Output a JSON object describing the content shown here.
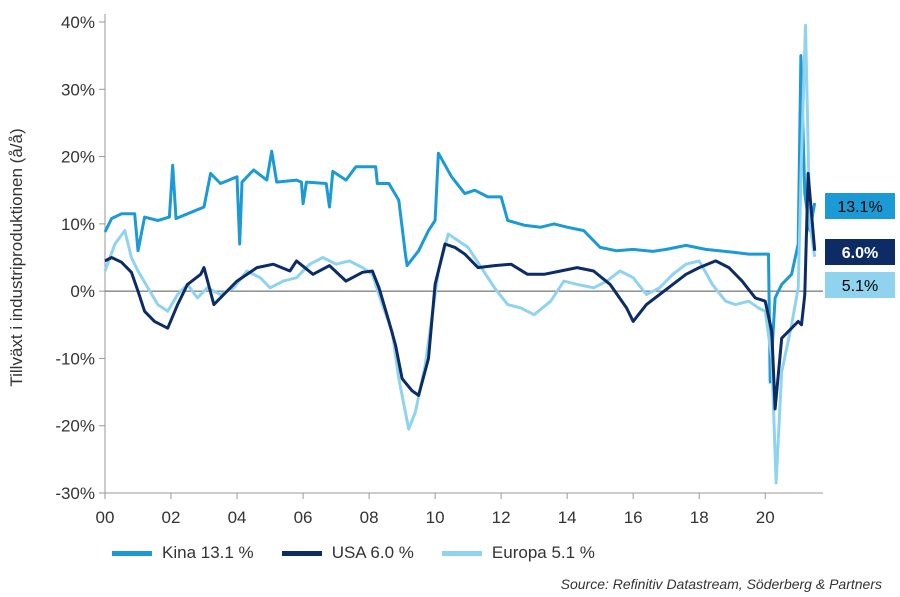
{
  "chart_data": {
    "type": "line",
    "title": "",
    "ylabel": "Tillväxt i industriproduktionen (å/å)",
    "xlabel": "",
    "ylim": [
      -30,
      40
    ],
    "xlim": [
      2000,
      2021.75
    ],
    "yticks": [
      -30,
      -20,
      -10,
      0,
      10,
      20,
      30,
      40
    ],
    "ytick_labels": [
      "-30%",
      "-20%",
      "-10%",
      "0%",
      "10%",
      "20%",
      "30%",
      "40%"
    ],
    "xticks": [
      2000,
      2002,
      2004,
      2006,
      2008,
      2010,
      2012,
      2014,
      2016,
      2018,
      2020
    ],
    "xtick_labels": [
      "00",
      "02",
      "04",
      "06",
      "08",
      "10",
      "12",
      "14",
      "16",
      "18",
      "20"
    ],
    "grid": false,
    "legend_position": "bottom",
    "series": [
      {
        "name": "Kina 13.1 %",
        "color": "#1b9ad6",
        "end_label": "13.1%",
        "points": [
          [
            2000.0,
            8.8
          ],
          [
            2000.2,
            10.8
          ],
          [
            2000.5,
            11.5
          ],
          [
            2000.9,
            11.5
          ],
          [
            2001.0,
            6.0
          ],
          [
            2001.2,
            11.0
          ],
          [
            2001.6,
            10.5
          ],
          [
            2001.95,
            11.0
          ],
          [
            2002.05,
            18.7
          ],
          [
            2002.15,
            10.8
          ],
          [
            2002.5,
            11.5
          ],
          [
            2003.0,
            12.5
          ],
          [
            2003.2,
            17.5
          ],
          [
            2003.5,
            16.0
          ],
          [
            2004.0,
            17.0
          ],
          [
            2004.08,
            7.0
          ],
          [
            2004.15,
            16.2
          ],
          [
            2004.5,
            18.0
          ],
          [
            2004.9,
            16.5
          ],
          [
            2005.05,
            20.8
          ],
          [
            2005.2,
            16.2
          ],
          [
            2005.8,
            16.5
          ],
          [
            2005.95,
            16.2
          ],
          [
            2006.0,
            13.0
          ],
          [
            2006.1,
            16.2
          ],
          [
            2006.7,
            16.0
          ],
          [
            2006.8,
            12.5
          ],
          [
            2006.9,
            17.8
          ],
          [
            2007.3,
            16.5
          ],
          [
            2007.6,
            18.5
          ],
          [
            2008.2,
            18.5
          ],
          [
            2008.25,
            16.0
          ],
          [
            2008.6,
            16.0
          ],
          [
            2008.9,
            13.5
          ],
          [
            2009.1,
            5.5
          ],
          [
            2009.15,
            3.8
          ],
          [
            2009.5,
            6.0
          ],
          [
            2009.8,
            9.0
          ],
          [
            2010.0,
            10.5
          ],
          [
            2010.1,
            20.5
          ],
          [
            2010.5,
            17.0
          ],
          [
            2010.9,
            14.5
          ],
          [
            2011.2,
            15.0
          ],
          [
            2011.6,
            14.0
          ],
          [
            2012.0,
            14.0
          ],
          [
            2012.2,
            10.5
          ],
          [
            2012.7,
            9.8
          ],
          [
            2013.2,
            9.5
          ],
          [
            2013.6,
            10.0
          ],
          [
            2014.0,
            9.5
          ],
          [
            2014.5,
            9.0
          ],
          [
            2015.0,
            6.5
          ],
          [
            2015.5,
            6.0
          ],
          [
            2016.0,
            6.2
          ],
          [
            2016.6,
            5.9
          ],
          [
            2017.0,
            6.2
          ],
          [
            2017.6,
            6.8
          ],
          [
            2018.2,
            6.2
          ],
          [
            2018.6,
            6.0
          ],
          [
            2019.0,
            5.8
          ],
          [
            2019.5,
            5.5
          ],
          [
            2020.1,
            5.5
          ],
          [
            2020.15,
            -13.5
          ],
          [
            2020.3,
            -1.0
          ],
          [
            2020.5,
            1.0
          ],
          [
            2020.8,
            2.5
          ],
          [
            2021.0,
            7.0
          ],
          [
            2021.08,
            35.0
          ],
          [
            2021.2,
            14.5
          ],
          [
            2021.35,
            9.0
          ],
          [
            2021.5,
            13.1
          ]
        ]
      },
      {
        "name": "USA 6.0 %",
        "color": "#0d2c66",
        "end_label": "6.0%",
        "points": [
          [
            2000.0,
            4.5
          ],
          [
            2000.2,
            5.0
          ],
          [
            2000.5,
            4.3
          ],
          [
            2000.8,
            2.8
          ],
          [
            2001.0,
            0.0
          ],
          [
            2001.2,
            -3.0
          ],
          [
            2001.5,
            -4.5
          ],
          [
            2001.9,
            -5.5
          ],
          [
            2002.2,
            -2.0
          ],
          [
            2002.5,
            1.0
          ],
          [
            2002.9,
            2.5
          ],
          [
            2003.0,
            3.5
          ],
          [
            2003.3,
            -2.0
          ],
          [
            2003.6,
            -0.5
          ],
          [
            2004.0,
            1.5
          ],
          [
            2004.6,
            3.5
          ],
          [
            2005.1,
            4.0
          ],
          [
            2005.6,
            3.0
          ],
          [
            2005.8,
            4.5
          ],
          [
            2006.3,
            2.5
          ],
          [
            2006.8,
            3.8
          ],
          [
            2007.3,
            1.5
          ],
          [
            2007.8,
            2.8
          ],
          [
            2008.1,
            3.0
          ],
          [
            2008.3,
            0.5
          ],
          [
            2008.6,
            -4.5
          ],
          [
            2008.8,
            -8.0
          ],
          [
            2009.0,
            -13.0
          ],
          [
            2009.3,
            -14.8
          ],
          [
            2009.5,
            -15.5
          ],
          [
            2009.8,
            -10.0
          ],
          [
            2010.0,
            1.0
          ],
          [
            2010.3,
            7.0
          ],
          [
            2010.6,
            6.5
          ],
          [
            2010.9,
            5.5
          ],
          [
            2011.3,
            3.5
          ],
          [
            2011.8,
            3.8
          ],
          [
            2012.3,
            4.0
          ],
          [
            2012.8,
            2.5
          ],
          [
            2013.3,
            2.5
          ],
          [
            2013.8,
            3.0
          ],
          [
            2014.3,
            3.5
          ],
          [
            2014.8,
            3.0
          ],
          [
            2015.3,
            1.0
          ],
          [
            2015.8,
            -2.5
          ],
          [
            2016.0,
            -4.5
          ],
          [
            2016.4,
            -2.0
          ],
          [
            2016.8,
            -0.5
          ],
          [
            2017.2,
            1.0
          ],
          [
            2017.6,
            2.5
          ],
          [
            2018.0,
            3.5
          ],
          [
            2018.5,
            4.5
          ],
          [
            2018.9,
            3.5
          ],
          [
            2019.3,
            1.5
          ],
          [
            2019.7,
            -1.0
          ],
          [
            2020.0,
            -1.5
          ],
          [
            2020.2,
            -6.0
          ],
          [
            2020.3,
            -17.5
          ],
          [
            2020.5,
            -7.0
          ],
          [
            2020.8,
            -5.5
          ],
          [
            2021.0,
            -4.5
          ],
          [
            2021.1,
            -5.0
          ],
          [
            2021.2,
            -0.5
          ],
          [
            2021.3,
            17.5
          ],
          [
            2021.5,
            6.0
          ]
        ]
      },
      {
        "name": "Europa 5.1 %",
        "color": "#8fd3ee",
        "end_label": "5.1%",
        "points": [
          [
            2000.0,
            3.0
          ],
          [
            2000.3,
            7.0
          ],
          [
            2000.6,
            9.0
          ],
          [
            2000.8,
            5.0
          ],
          [
            2001.0,
            3.0
          ],
          [
            2001.3,
            0.5
          ],
          [
            2001.6,
            -2.0
          ],
          [
            2001.9,
            -3.0
          ],
          [
            2002.2,
            -0.5
          ],
          [
            2002.5,
            1.0
          ],
          [
            2002.8,
            -1.0
          ],
          [
            2003.1,
            0.5
          ],
          [
            2003.5,
            -0.5
          ],
          [
            2003.9,
            0.5
          ],
          [
            2004.3,
            3.0
          ],
          [
            2004.7,
            2.0
          ],
          [
            2005.0,
            0.5
          ],
          [
            2005.4,
            1.5
          ],
          [
            2005.8,
            2.0
          ],
          [
            2006.2,
            4.0
          ],
          [
            2006.6,
            5.0
          ],
          [
            2007.0,
            4.0
          ],
          [
            2007.4,
            4.5
          ],
          [
            2007.8,
            3.5
          ],
          [
            2008.1,
            2.5
          ],
          [
            2008.4,
            -2.0
          ],
          [
            2008.7,
            -6.0
          ],
          [
            2008.9,
            -13.0
          ],
          [
            2009.2,
            -20.5
          ],
          [
            2009.4,
            -18.0
          ],
          [
            2009.7,
            -11.0
          ],
          [
            2009.9,
            -4.0
          ],
          [
            2010.1,
            3.0
          ],
          [
            2010.4,
            8.5
          ],
          [
            2010.7,
            7.5
          ],
          [
            2011.0,
            6.5
          ],
          [
            2011.4,
            3.5
          ],
          [
            2011.8,
            0.5
          ],
          [
            2012.2,
            -2.0
          ],
          [
            2012.6,
            -2.5
          ],
          [
            2013.0,
            -3.5
          ],
          [
            2013.5,
            -1.5
          ],
          [
            2013.9,
            1.5
          ],
          [
            2014.3,
            1.0
          ],
          [
            2014.8,
            0.5
          ],
          [
            2015.2,
            1.5
          ],
          [
            2015.6,
            3.0
          ],
          [
            2016.0,
            2.0
          ],
          [
            2016.4,
            -0.5
          ],
          [
            2016.8,
            0.5
          ],
          [
            2017.2,
            2.5
          ],
          [
            2017.6,
            4.0
          ],
          [
            2018.0,
            4.5
          ],
          [
            2018.4,
            1.0
          ],
          [
            2018.8,
            -1.5
          ],
          [
            2019.1,
            -2.0
          ],
          [
            2019.5,
            -1.5
          ],
          [
            2019.8,
            -2.5
          ],
          [
            2020.0,
            -3.0
          ],
          [
            2020.2,
            -10.0
          ],
          [
            2020.33,
            -28.5
          ],
          [
            2020.5,
            -12.0
          ],
          [
            2020.8,
            -5.0
          ],
          [
            2021.0,
            0.5
          ],
          [
            2021.1,
            20.0
          ],
          [
            2021.22,
            39.5
          ],
          [
            2021.35,
            10.0
          ],
          [
            2021.5,
            5.1
          ]
        ]
      }
    ],
    "source": "Source: Refinitiv Datastream, Söderberg & Partners"
  }
}
